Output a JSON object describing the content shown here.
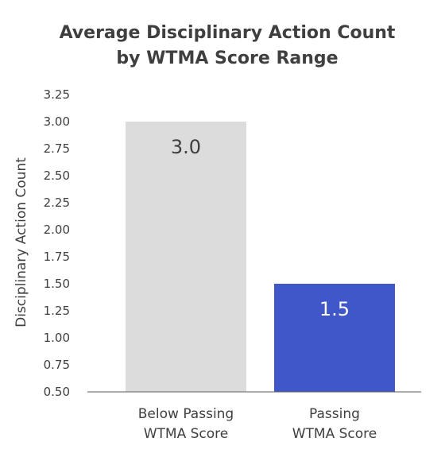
{
  "chart_data": {
    "type": "bar",
    "title_lines": [
      "Average Disciplinary Action Count",
      "by WTMA Score Range"
    ],
    "ylabel": "Disciplinary Action Count",
    "xlabel": "",
    "categories": [
      [
        "Below Passing",
        "WTMA Score"
      ],
      [
        "Passing",
        "WTMA Score"
      ]
    ],
    "values": [
      3.0,
      1.5
    ],
    "data_labels": [
      "3.0",
      "1.5"
    ],
    "colors": [
      "#dcdcdc",
      "#3f57c8"
    ],
    "label_colors": [
      "#3f3f3f",
      "#ffffff"
    ],
    "ylim": [
      0.5,
      3.25
    ],
    "yticks": [
      "0.50",
      "0.75",
      "1.00",
      "1.25",
      "1.50",
      "1.75",
      "2.00",
      "2.25",
      "2.50",
      "2.75",
      "3.00",
      "3.25"
    ],
    "grid": false,
    "legend": "none"
  }
}
